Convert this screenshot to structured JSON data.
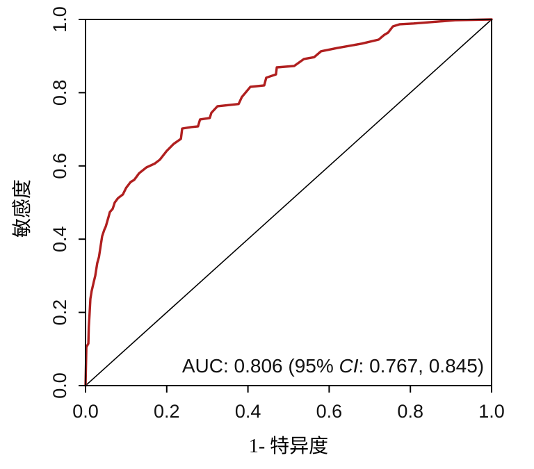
{
  "figure": {
    "background": "#ffffff",
    "annotation": {
      "prefix": "AUC: 0.806 (95% ",
      "ci": "CI",
      "suffix": ": 0.767, 0.845)"
    }
  },
  "colors": {
    "curve": "#b01f1f",
    "reference": "#000000",
    "axis": "#000000",
    "text": "#111111"
  },
  "chart_data": {
    "type": "line",
    "title": "",
    "xlabel": "1- 特异度",
    "ylabel": "敏感度",
    "xlim": [
      0.0,
      1.0
    ],
    "ylim": [
      0.0,
      1.0
    ],
    "xticks": [
      0.0,
      0.2,
      0.4,
      0.6,
      0.8,
      1.0
    ],
    "yticks": [
      0.0,
      0.2,
      0.4,
      0.6,
      0.8,
      1.0
    ],
    "grid": false,
    "legend": "none",
    "annotation_text": "AUC: 0.806 (95% CI: 0.767, 0.845)",
    "auc": 0.806,
    "ci_low": 0.767,
    "ci_high": 0.845,
    "series": [
      {
        "name": "ROC curve",
        "color": "#b01f1f",
        "stroke_width": 3.4,
        "points": [
          [
            0.0,
            0.0
          ],
          [
            0.002,
            0.105
          ],
          [
            0.007,
            0.115
          ],
          [
            0.008,
            0.16
          ],
          [
            0.01,
            0.195
          ],
          [
            0.012,
            0.237
          ],
          [
            0.015,
            0.258
          ],
          [
            0.02,
            0.282
          ],
          [
            0.024,
            0.3
          ],
          [
            0.029,
            0.335
          ],
          [
            0.033,
            0.351
          ],
          [
            0.041,
            0.408
          ],
          [
            0.046,
            0.425
          ],
          [
            0.05,
            0.435
          ],
          [
            0.057,
            0.462
          ],
          [
            0.06,
            0.474
          ],
          [
            0.067,
            0.483
          ],
          [
            0.072,
            0.5
          ],
          [
            0.08,
            0.512
          ],
          [
            0.092,
            0.522
          ],
          [
            0.1,
            0.54
          ],
          [
            0.111,
            0.556
          ],
          [
            0.12,
            0.562
          ],
          [
            0.132,
            0.58
          ],
          [
            0.15,
            0.596
          ],
          [
            0.17,
            0.606
          ],
          [
            0.183,
            0.617
          ],
          [
            0.2,
            0.641
          ],
          [
            0.217,
            0.66
          ],
          [
            0.235,
            0.674
          ],
          [
            0.238,
            0.702
          ],
          [
            0.26,
            0.706
          ],
          [
            0.277,
            0.708
          ],
          [
            0.282,
            0.727
          ],
          [
            0.306,
            0.731
          ],
          [
            0.31,
            0.745
          ],
          [
            0.325,
            0.763
          ],
          [
            0.377,
            0.769
          ],
          [
            0.385,
            0.788
          ],
          [
            0.406,
            0.816
          ],
          [
            0.44,
            0.82
          ],
          [
            0.445,
            0.841
          ],
          [
            0.469,
            0.85
          ],
          [
            0.471,
            0.869
          ],
          [
            0.514,
            0.873
          ],
          [
            0.538,
            0.892
          ],
          [
            0.563,
            0.897
          ],
          [
            0.58,
            0.913
          ],
          [
            0.62,
            0.922
          ],
          [
            0.68,
            0.934
          ],
          [
            0.722,
            0.945
          ],
          [
            0.736,
            0.958
          ],
          [
            0.745,
            0.964
          ],
          [
            0.757,
            0.981
          ],
          [
            0.774,
            0.987
          ],
          [
            0.808,
            0.989
          ],
          [
            0.865,
            0.994
          ],
          [
            0.91,
            0.998
          ],
          [
            1.0,
            1.0
          ]
        ]
      },
      {
        "name": "reference diagonal",
        "color": "#000000",
        "stroke_width": 1.6,
        "points": [
          [
            0.0,
            0.0
          ],
          [
            1.0,
            1.0
          ]
        ]
      }
    ]
  }
}
